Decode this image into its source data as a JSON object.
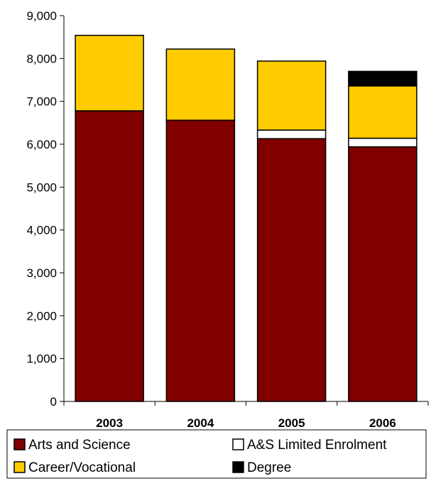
{
  "chart_data": {
    "type": "bar",
    "stacked": true,
    "title": "",
    "xlabel": "",
    "ylabel": "",
    "categories": [
      "2003",
      "2004",
      "2005",
      "2006"
    ],
    "ylim": [
      0,
      9000
    ],
    "yticks": [
      0,
      1000,
      2000,
      3000,
      4000,
      5000,
      6000,
      7000,
      8000,
      9000
    ],
    "ytick_labels": [
      "0",
      "1,000",
      "2,000",
      "3,000",
      "4,000",
      "5,000",
      "6,000",
      "7,000",
      "8,000",
      "9,000"
    ],
    "grid": false,
    "legend_position": "bottom",
    "series": [
      {
        "name": "Arts and Science",
        "color": "#800000",
        "values": [
          6780,
          6560,
          6130,
          5940
        ]
      },
      {
        "name": "A&S Limited Enrolment",
        "color": "#ffffff",
        "values": [
          0,
          0,
          200,
          200
        ]
      },
      {
        "name": "Career/Vocational",
        "color": "#ffcc00",
        "values": [
          1760,
          1660,
          1610,
          1220
        ]
      },
      {
        "name": "Degree",
        "color": "#000000",
        "values": [
          0,
          0,
          0,
          340
        ]
      }
    ]
  }
}
